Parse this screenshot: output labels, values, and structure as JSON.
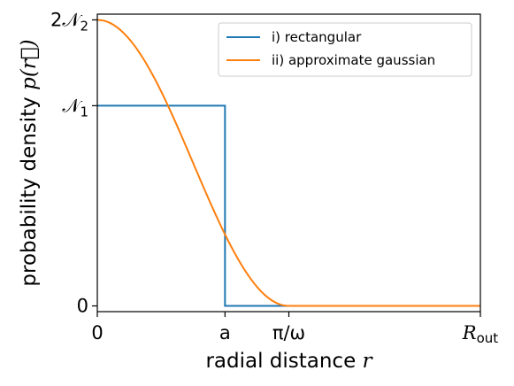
{
  "chart_data": {
    "type": "line",
    "xlabel": {
      "text": "radial distance ",
      "var": "r"
    },
    "ylabel": {
      "text": "probability density ",
      "var": "p(r⃗)"
    },
    "xlim": [
      0,
      3
    ],
    "ylim": [
      -0.04,
      2.04
    ],
    "x_ticks": [
      {
        "value": 0,
        "label": "0"
      },
      {
        "value": 1,
        "label": "a"
      },
      {
        "value": 1.5,
        "label": "π/ω"
      },
      {
        "value": 3,
        "label": "R",
        "sub": "out"
      }
    ],
    "y_ticks": [
      {
        "value": 0,
        "label": "0"
      },
      {
        "value": 1.4,
        "label": "𝒩",
        "sub": "1"
      },
      {
        "value": 2,
        "label": "2𝒩",
        "sub": "2"
      }
    ],
    "legend_position": "top-right",
    "series": [
      {
        "name": "i) rectangular",
        "color": "#1f77b4",
        "x": [
          0,
          1,
          1,
          3
        ],
        "y": [
          1.4,
          1.4,
          0,
          0
        ]
      },
      {
        "name": "ii) approximate gaussian",
        "color": "#ff7f0e",
        "x": [
          0,
          0.25,
          0.5,
          0.75,
          1.0,
          1.25,
          1.5,
          3
        ],
        "y": [
          2.0,
          1.866,
          1.5,
          1.0,
          0.5,
          0.134,
          0,
          0
        ]
      }
    ]
  }
}
